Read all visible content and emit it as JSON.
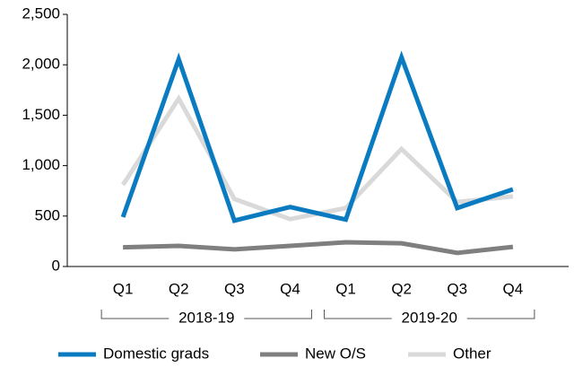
{
  "chart_data": {
    "type": "line",
    "categories": [
      "Q1",
      "Q2",
      "Q3",
      "Q4",
      "Q1",
      "Q2",
      "Q3",
      "Q4"
    ],
    "category_groups": [
      "2018-19",
      "2019-20"
    ],
    "series": [
      {
        "name": "Domestic grads",
        "color": "#0a7bc1",
        "values": [
          490,
          2055,
          455,
          590,
          465,
          2075,
          580,
          765
        ]
      },
      {
        "name": "New O/S",
        "color": "#7f7f7f",
        "values": [
          190,
          205,
          170,
          205,
          240,
          230,
          135,
          195
        ]
      },
      {
        "name": "Other",
        "color": "#d9d9d9",
        "values": [
          810,
          1665,
          670,
          470,
          580,
          1165,
          640,
          695
        ]
      }
    ],
    "ylim": [
      0,
      2500
    ],
    "yticks": [
      0,
      500,
      {
        "value": 1000,
        "label": "1,000"
      },
      {
        "value": 1500,
        "label": "1,500"
      },
      {
        "value": 2000,
        "label": "2,000"
      },
      {
        "value": 2500,
        "label": "2,500"
      }
    ],
    "grid": false,
    "legend": "bottom"
  }
}
